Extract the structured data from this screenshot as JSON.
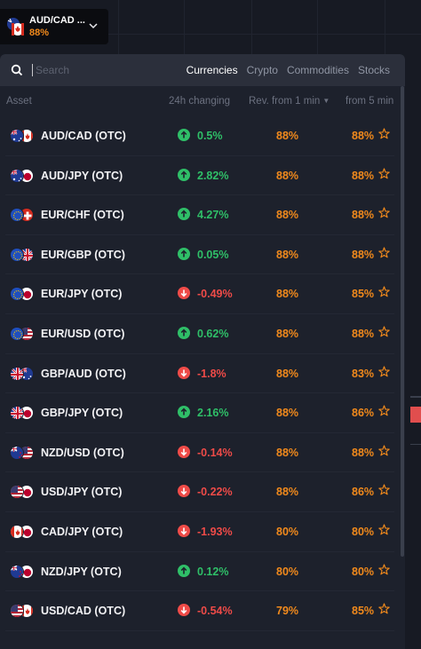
{
  "selected_asset": {
    "name": "AUD/CAD ...",
    "payout": "88%"
  },
  "search": {
    "placeholder": "Search",
    "value": ""
  },
  "tabs": [
    {
      "label": "Currencies",
      "active": true
    },
    {
      "label": "Crypto",
      "active": false
    },
    {
      "label": "Commodities",
      "active": false
    },
    {
      "label": "Stocks",
      "active": false
    }
  ],
  "columns": {
    "asset": "Asset",
    "change": "24h changing",
    "rev1": "Rev. from 1 min",
    "rev5": "from 5 min"
  },
  "colors": {
    "accent_orange": "#f28a1c",
    "up_green": "#2fbf68",
    "down_red": "#ef4b48",
    "panel_bg": "#1d212c",
    "header_bg": "#2b2f3b"
  },
  "rows": [
    {
      "pair": "AUD/CAD (OTC)",
      "base": "au",
      "quote": "ca",
      "direction": "up",
      "change": "0.5%",
      "rev1": "88%",
      "rev5": "88%"
    },
    {
      "pair": "AUD/JPY (OTC)",
      "base": "au",
      "quote": "jp",
      "direction": "up",
      "change": "2.82%",
      "rev1": "88%",
      "rev5": "88%"
    },
    {
      "pair": "EUR/CHF (OTC)",
      "base": "eu",
      "quote": "ch",
      "direction": "up",
      "change": "4.27%",
      "rev1": "88%",
      "rev5": "88%"
    },
    {
      "pair": "EUR/GBP (OTC)",
      "base": "eu",
      "quote": "gb",
      "direction": "up",
      "change": "0.05%",
      "rev1": "88%",
      "rev5": "88%"
    },
    {
      "pair": "EUR/JPY (OTC)",
      "base": "eu",
      "quote": "jp",
      "direction": "down",
      "change": "-0.49%",
      "rev1": "88%",
      "rev5": "85%"
    },
    {
      "pair": "EUR/USD (OTC)",
      "base": "eu",
      "quote": "us",
      "direction": "up",
      "change": "0.62%",
      "rev1": "88%",
      "rev5": "88%"
    },
    {
      "pair": "GBP/AUD (OTC)",
      "base": "gb",
      "quote": "au",
      "direction": "down",
      "change": "-1.8%",
      "rev1": "88%",
      "rev5": "83%"
    },
    {
      "pair": "GBP/JPY (OTC)",
      "base": "gb",
      "quote": "jp",
      "direction": "up",
      "change": "2.16%",
      "rev1": "88%",
      "rev5": "86%"
    },
    {
      "pair": "NZD/USD (OTC)",
      "base": "nz",
      "quote": "us",
      "direction": "down",
      "change": "-0.14%",
      "rev1": "88%",
      "rev5": "88%"
    },
    {
      "pair": "USD/JPY (OTC)",
      "base": "us",
      "quote": "jp",
      "direction": "down",
      "change": "-0.22%",
      "rev1": "88%",
      "rev5": "86%"
    },
    {
      "pair": "CAD/JPY (OTC)",
      "base": "ca",
      "quote": "jp",
      "direction": "down",
      "change": "-1.93%",
      "rev1": "80%",
      "rev5": "80%"
    },
    {
      "pair": "NZD/JPY (OTC)",
      "base": "nz",
      "quote": "jp",
      "direction": "up",
      "change": "0.12%",
      "rev1": "80%",
      "rev5": "80%"
    },
    {
      "pair": "USD/CAD (OTC)",
      "base": "us",
      "quote": "ca",
      "direction": "down",
      "change": "-0.54%",
      "rev1": "79%",
      "rev5": "85%"
    }
  ]
}
